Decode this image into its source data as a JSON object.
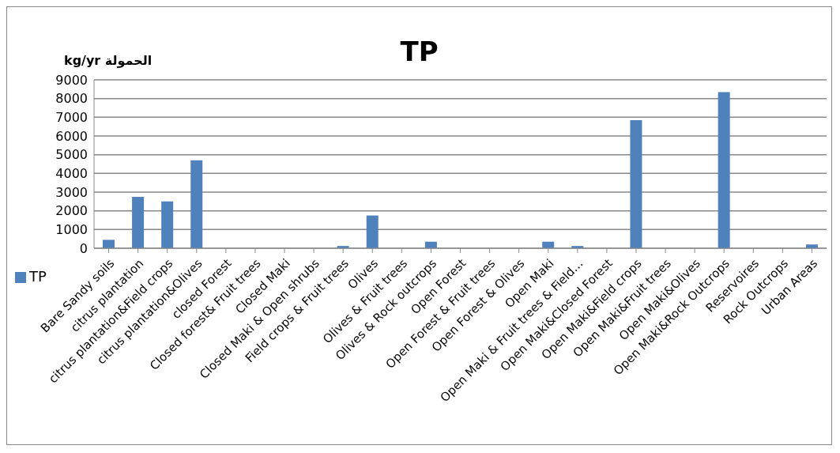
{
  "chart_data": {
    "type": "bar",
    "title": "TP",
    "ylabel": "kg/yr الحمولة",
    "categories": [
      "Bare Sandy soils",
      "citrus plantation",
      "citrus plantation&Field crops",
      "citrus plantation&Olives",
      "closed Forest",
      "Closed forest& Fruit trees",
      "Closed Maki",
      "Closed Maki & Open shrubs",
      "Field crops & Fruit trees",
      "Olives",
      "Olives & Fruit trees",
      "Olives & Rock outcrops",
      "Open Forest",
      "Open Forest & Fruit trees",
      "Open Forest & Olives",
      "Open Maki",
      "Open Maki & Fruit trees & Field…",
      "Open Maki&Closed Forest",
      "Open Maki&Field crops",
      "Open Maki&Fruit trees",
      "Open Maki&Olives",
      "Open Maki&Rock Outcrops",
      "Reservoires",
      "Rock Outcrops",
      "Urban Areas"
    ],
    "series": [
      {
        "name": "TP",
        "color": "#4f81bd",
        "values": [
          450,
          2750,
          2500,
          4700,
          0,
          0,
          0,
          0,
          120,
          1750,
          0,
          350,
          0,
          0,
          0,
          350,
          120,
          0,
          6850,
          0,
          0,
          8350,
          0,
          0,
          200
        ]
      }
    ],
    "ylim": [
      0,
      9000
    ],
    "yticks": [
      0,
      1000,
      2000,
      3000,
      4000,
      5000,
      6000,
      7000,
      8000,
      9000
    ],
    "grid": "y",
    "legend": "left"
  }
}
